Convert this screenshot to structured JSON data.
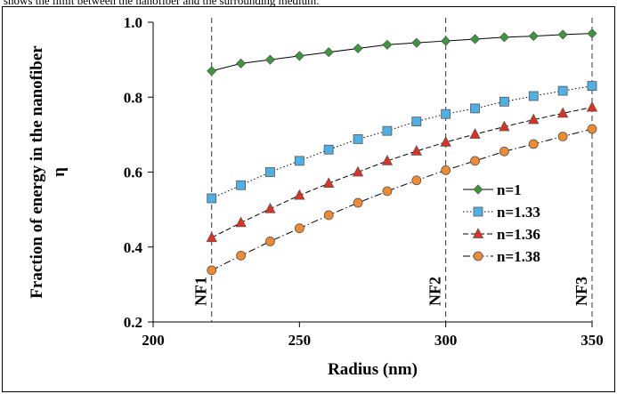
{
  "caption": "shows the limit between the nanofiber and the surrounding medium.",
  "chart_data": {
    "type": "line",
    "title": "",
    "xlabel": "Radius (nm)",
    "ylabel": "Fraction of energy in the nanofiber",
    "ylabel_symbol": "η",
    "xlim": [
      200,
      350
    ],
    "ylim": [
      0.2,
      1.0
    ],
    "xticks": [
      200,
      250,
      300,
      350
    ],
    "yticks": [
      0.2,
      0.4,
      0.6,
      0.8,
      1.0
    ],
    "ytick_labels": [
      "0.2",
      "0.4",
      "0.6",
      "0.8",
      "1.0"
    ],
    "grid": false,
    "legend_position": "right",
    "x": [
      220,
      230,
      240,
      250,
      260,
      270,
      280,
      290,
      300,
      310,
      320,
      330,
      340,
      350
    ],
    "series": [
      {
        "name": "n=1",
        "color": "#3a9a3a",
        "marker": "diamond",
        "line": "solid",
        "values": [
          0.87,
          0.89,
          0.9,
          0.91,
          0.92,
          0.93,
          0.94,
          0.945,
          0.95,
          0.955,
          0.96,
          0.963,
          0.967,
          0.97
        ]
      },
      {
        "name": "n=1.33",
        "color": "#4fb0e6",
        "marker": "square",
        "line": "dotted",
        "values": [
          0.53,
          0.565,
          0.6,
          0.63,
          0.66,
          0.688,
          0.71,
          0.735,
          0.755,
          0.77,
          0.788,
          0.803,
          0.817,
          0.83
        ]
      },
      {
        "name": "n=1.36",
        "color": "#e03020",
        "marker": "triangle",
        "line": "dashed",
        "values": [
          0.425,
          0.465,
          0.502,
          0.538,
          0.57,
          0.6,
          0.63,
          0.656,
          0.68,
          0.701,
          0.721,
          0.74,
          0.757,
          0.773
        ]
      },
      {
        "name": "n=1.38",
        "color": "#f08a30",
        "marker": "circle",
        "line": "dashdot",
        "values": [
          0.338,
          0.377,
          0.415,
          0.45,
          0.485,
          0.518,
          0.549,
          0.578,
          0.605,
          0.63,
          0.655,
          0.675,
          0.695,
          0.715
        ]
      }
    ],
    "annotations": [
      {
        "label": "NF1",
        "x": 220
      },
      {
        "label": "NF2",
        "x": 300
      },
      {
        "label": "NF3",
        "x": 350
      }
    ]
  }
}
